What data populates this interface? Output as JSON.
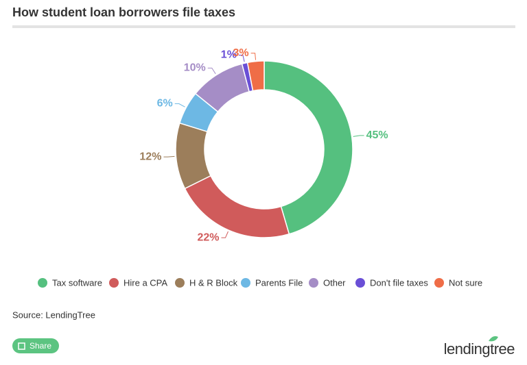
{
  "chart_data": {
    "type": "pie",
    "title": "How student loan borrowers file taxes",
    "categories": [
      "Tax software",
      "Hire a CPA",
      "H & R Block",
      "Parents File",
      "Other",
      "Don't file taxes",
      "Not sure"
    ],
    "values": [
      45,
      22,
      12,
      6,
      10,
      1,
      3
    ],
    "value_labels": [
      "45%",
      "22%",
      "12%",
      "6%",
      "10%",
      "1%",
      "3%"
    ],
    "colors": [
      "#55c07f",
      "#d05b5b",
      "#9c7e5b",
      "#6db8e4",
      "#a58dc6",
      "#6a4fd6",
      "#ef6d47"
    ],
    "legend": "bottom",
    "source": "Source: LendingTree"
  },
  "share_button": "Share",
  "brand": "lendingtree"
}
